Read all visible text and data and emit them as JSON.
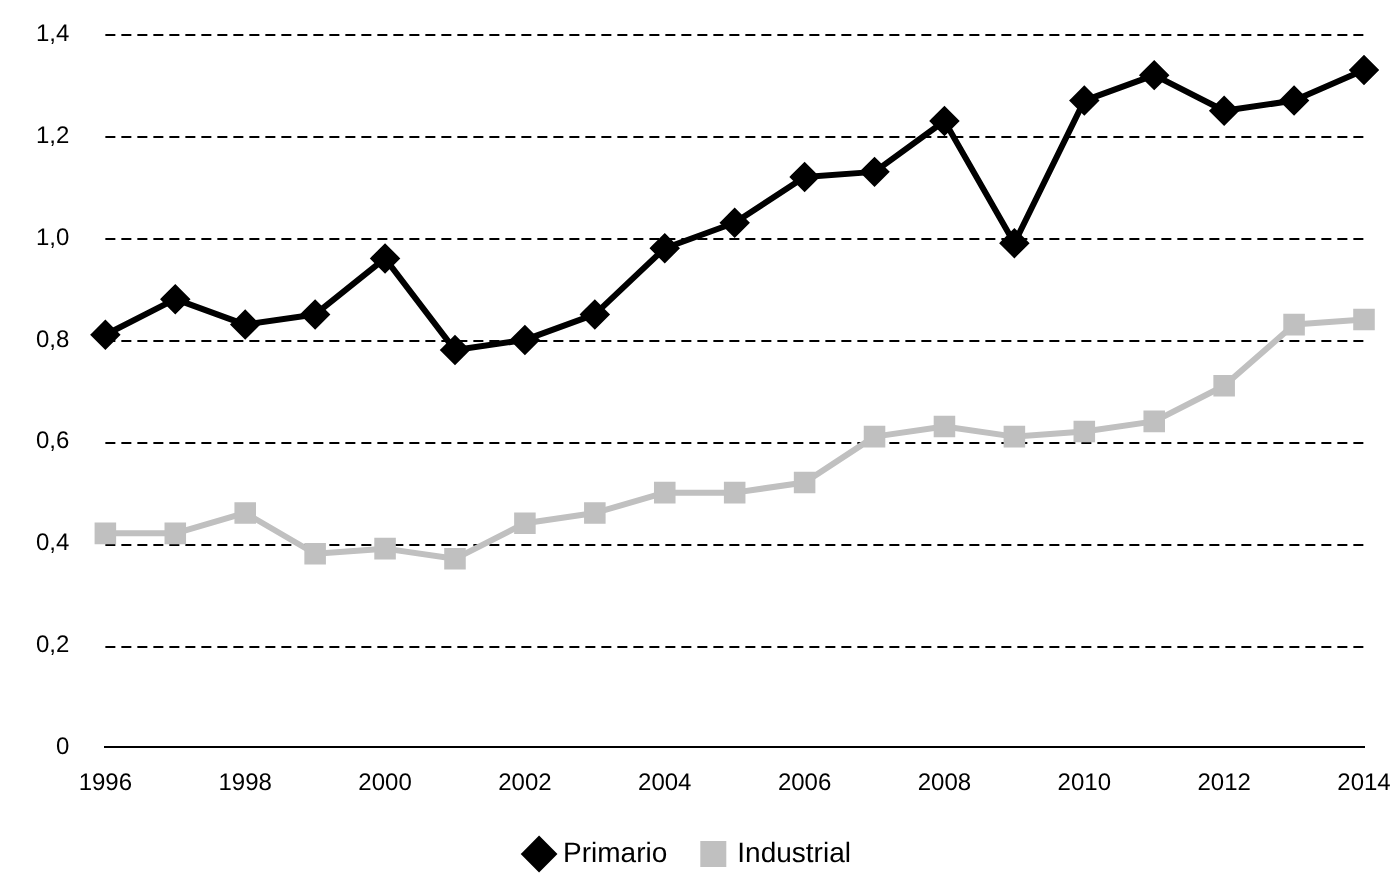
{
  "chart_data": {
    "type": "line",
    "categories": [
      "1996",
      null,
      "1998",
      null,
      "2000",
      null,
      "2002",
      null,
      "2004",
      null,
      "2006",
      null,
      "2008",
      null,
      "2010",
      null,
      "2012",
      null,
      "2014"
    ],
    "series": [
      {
        "name": "Primario",
        "color": "#000000",
        "marker": "diamond",
        "values": [
          0.81,
          0.88,
          0.83,
          0.85,
          0.96,
          0.78,
          0.8,
          0.85,
          0.98,
          1.03,
          1.12,
          1.13,
          1.23,
          0.99,
          1.27,
          1.32,
          1.25,
          1.27,
          1.33
        ]
      },
      {
        "name": "Industrial",
        "color": "#c0c0c0",
        "marker": "square",
        "values": [
          0.42,
          0.42,
          0.46,
          0.38,
          0.39,
          0.37,
          0.44,
          0.46,
          0.5,
          0.5,
          0.52,
          0.61,
          0.63,
          0.61,
          0.62,
          0.64,
          0.71,
          0.83,
          0.84
        ]
      }
    ],
    "ylim": [
      0,
      1.4
    ],
    "yticks": [
      0,
      {
        "value": 0.2,
        "label": "0,2"
      },
      {
        "value": 0.4,
        "label": "0,4"
      },
      {
        "value": 0.6,
        "label": "0,6"
      },
      {
        "value": 0.8,
        "label": "0,8"
      },
      {
        "value": 1.0,
        "label": "1,0"
      },
      {
        "value": 1.2,
        "label": "1,2"
      },
      {
        "value": 1.4,
        "label": "1,4"
      }
    ],
    "grid": "y",
    "legend": "bottom",
    "line_style": "solid"
  }
}
